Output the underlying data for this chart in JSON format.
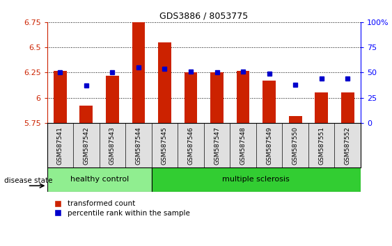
{
  "title": "GDS3886 / 8053775",
  "samples": [
    "GSM587541",
    "GSM587542",
    "GSM587543",
    "GSM587544",
    "GSM587545",
    "GSM587546",
    "GSM587547",
    "GSM587548",
    "GSM587549",
    "GSM587550",
    "GSM587551",
    "GSM587552"
  ],
  "transformed_count": [
    6.27,
    5.92,
    6.22,
    6.75,
    6.55,
    6.25,
    6.25,
    6.27,
    6.17,
    5.82,
    6.05,
    6.05
  ],
  "percentile_rank": [
    50,
    37,
    50,
    55,
    54,
    51,
    50,
    51,
    49,
    38,
    44,
    44
  ],
  "bar_color": "#cc2200",
  "dot_color": "#0000cc",
  "ylim_left": [
    5.75,
    6.75
  ],
  "ylim_right": [
    0,
    100
  ],
  "yticks_left": [
    5.75,
    6.0,
    6.25,
    6.5,
    6.75
  ],
  "ytick_labels_left": [
    "5.75",
    "6",
    "6.25",
    "6.5",
    "6.75"
  ],
  "yticks_right": [
    0,
    25,
    50,
    75,
    100
  ],
  "ytick_labels_right": [
    "0",
    "25",
    "50",
    "75",
    "100%"
  ],
  "healthy_control_n": 4,
  "multiple_sclerosis_n": 8,
  "healthy_color": "#90ee90",
  "ms_color": "#32cd32",
  "label_bar": "transformed count",
  "label_dot": "percentile rank within the sample",
  "disease_state_label": "disease state",
  "healthy_label": "healthy control",
  "ms_label": "multiple sclerosis",
  "grid_color": "black",
  "base_value": 5.75,
  "bar_width": 0.5,
  "bg_color": "#e0e0e0"
}
